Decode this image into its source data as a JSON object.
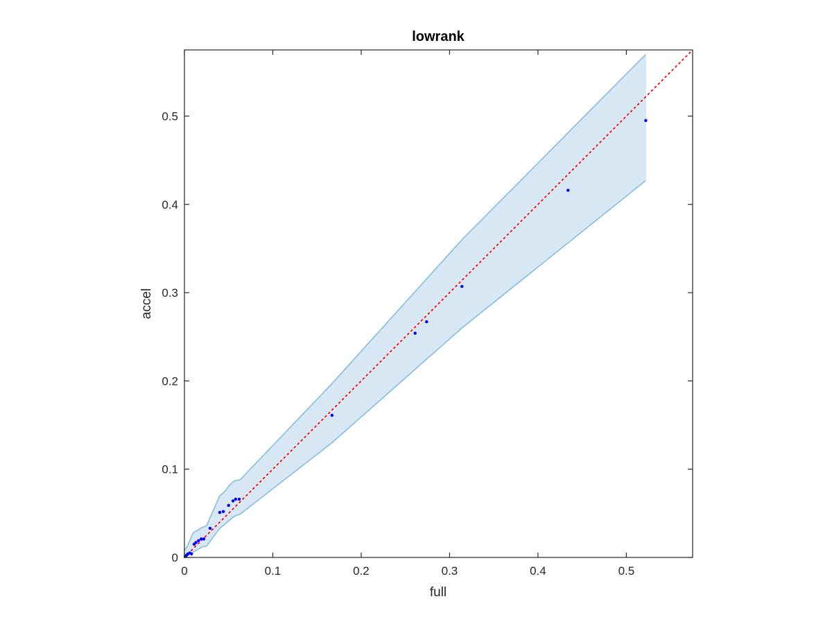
{
  "chart_data": {
    "type": "scatter",
    "title": "lowrank",
    "xlabel": "full",
    "ylabel": "accel",
    "xlim": [
      0,
      0.575
    ],
    "ylim": [
      0,
      0.575
    ],
    "xticks": [
      0,
      0.1,
      0.2,
      0.3,
      0.4,
      0.5
    ],
    "yticks": [
      0,
      0.1,
      0.2,
      0.3,
      0.4,
      0.5
    ],
    "xtick_labels": [
      "0",
      "0.1",
      "0.2",
      "0.3",
      "0.4",
      "0.5"
    ],
    "ytick_labels": [
      "0",
      "0.1",
      "0.2",
      "0.3",
      "0.4",
      "0.5"
    ],
    "grid": false,
    "points": {
      "x": [
        0.001,
        0.002,
        0.003,
        0.004,
        0.006,
        0.008,
        0.011,
        0.013,
        0.016,
        0.019,
        0.022,
        0.029,
        0.04,
        0.044,
        0.05,
        0.055,
        0.058,
        0.062,
        0.167,
        0.261,
        0.274,
        0.314,
        0.434,
        0.522
      ],
      "y": [
        0.001,
        0.002,
        0.003,
        0.004,
        0.005,
        0.004,
        0.015,
        0.017,
        0.019,
        0.021,
        0.021,
        0.033,
        0.051,
        0.052,
        0.059,
        0.064,
        0.066,
        0.066,
        0.161,
        0.254,
        0.267,
        0.307,
        0.416,
        0.495
      ],
      "color": "#0000ff"
    },
    "band": {
      "x": [
        0,
        0.003,
        0.01,
        0.02,
        0.025,
        0.04,
        0.045,
        0.052,
        0.057,
        0.063,
        0.167,
        0.314,
        0.522
      ],
      "upper": [
        0.008,
        0.012,
        0.028,
        0.034,
        0.036,
        0.07,
        0.074,
        0.083,
        0.087,
        0.088,
        0.197,
        0.36,
        0.57
      ],
      "lower": [
        0,
        0.003,
        0.006,
        0.012,
        0.013,
        0.033,
        0.037,
        0.043,
        0.047,
        0.049,
        0.13,
        0.26,
        0.427
      ],
      "fill_color": "#d7e8f4",
      "line_color": "#86bde0"
    },
    "reference_line": {
      "x": [
        0,
        0.575
      ],
      "y": [
        0,
        0.575
      ],
      "style": "dotted",
      "color": "#ff0000"
    }
  }
}
